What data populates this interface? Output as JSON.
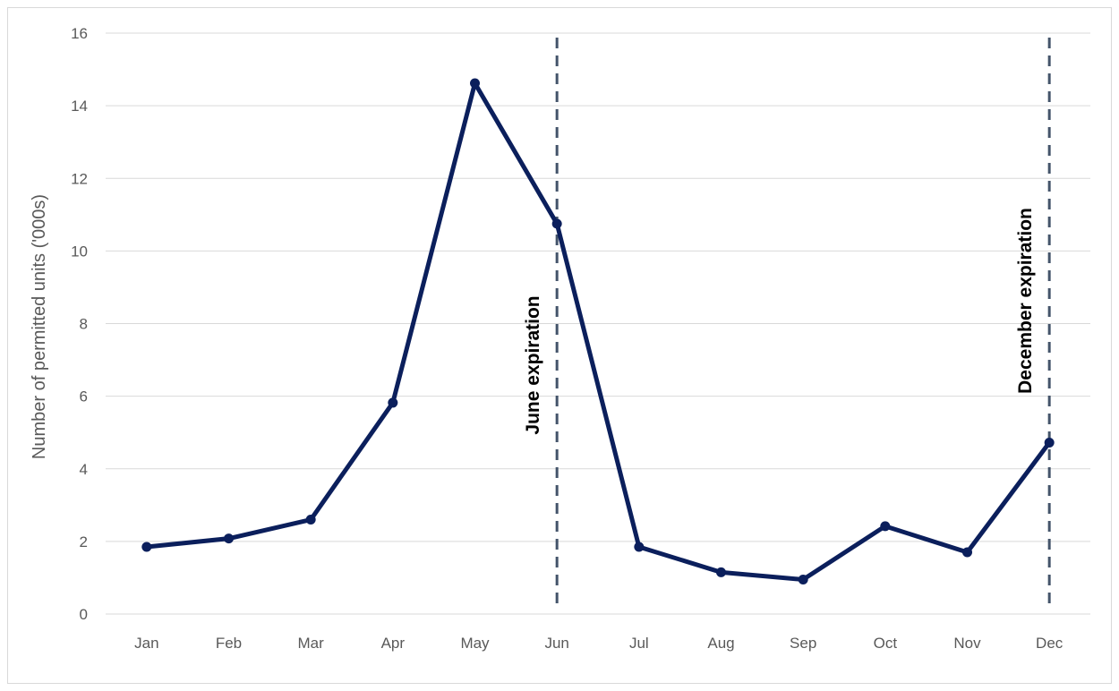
{
  "chart_data": {
    "type": "line",
    "title": "",
    "xlabel": "",
    "ylabel": "Number of permitted units ('000s)",
    "ylim": [
      0,
      16
    ],
    "yticks": [
      0,
      2,
      4,
      6,
      8,
      10,
      12,
      14,
      16
    ],
    "grid": true,
    "legend": "none",
    "categories": [
      "Jan",
      "Feb",
      "Mar",
      "Apr",
      "May",
      "Jun",
      "Jul",
      "Aug",
      "Sep",
      "Oct",
      "Nov",
      "Dec"
    ],
    "series": [
      {
        "values": [
          1.85,
          2.08,
          2.6,
          5.82,
          14.62,
          10.75,
          1.85,
          1.15,
          0.95,
          2.42,
          1.7,
          4.72
        ],
        "color": "#0b1f5c"
      }
    ],
    "annotations": [
      {
        "category": "Jun",
        "label": "June expiration",
        "style": "dashed-vertical-line",
        "color": "#44546a"
      },
      {
        "category": "Dec",
        "label": "December expiration",
        "style": "dashed-vertical-line",
        "color": "#44546a"
      }
    ]
  }
}
